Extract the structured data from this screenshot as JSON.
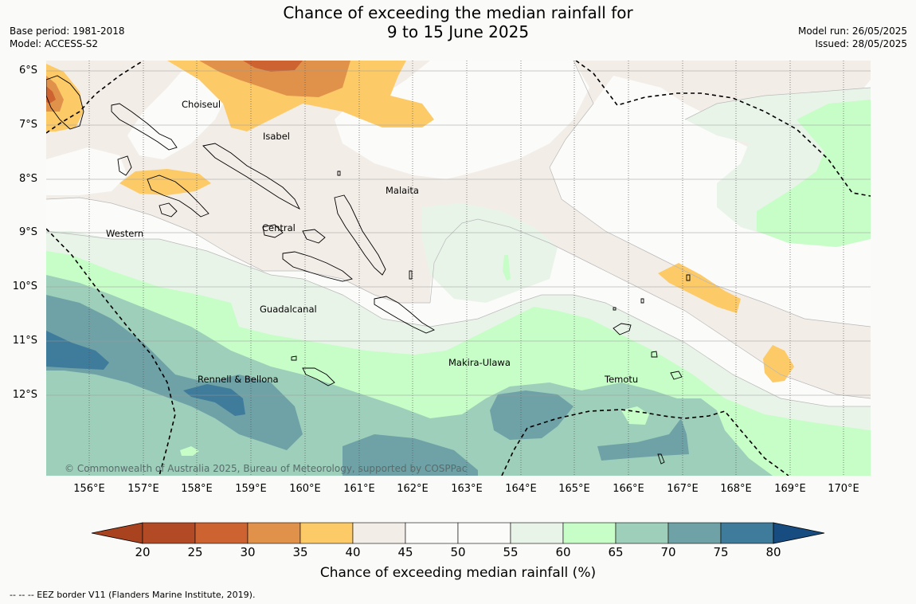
{
  "title": {
    "line1": "Chance of exceeding the median rainfall for",
    "line2": "9 to 15 June 2025"
  },
  "meta_left": {
    "base_period": "Base period: 1981-2018",
    "model": "Model: ACCESS-S2"
  },
  "meta_right": {
    "model_run": "Model run: 26/05/2025",
    "issued": "Issued: 28/05/2025"
  },
  "map": {
    "latitude_labels": [
      "6°S",
      "7°S",
      "8°S",
      "9°S",
      "10°S",
      "11°S",
      "12°S"
    ],
    "longitude_labels": [
      "156°E",
      "157°E",
      "158°E",
      "159°E",
      "160°E",
      "161°E",
      "162°E",
      "163°E",
      "164°E",
      "165°E",
      "166°E",
      "167°E",
      "168°E",
      "169°E",
      "170°E"
    ],
    "place_labels": {
      "choiseul": "Choiseul",
      "isabel": "Isabel",
      "malaita": "Malaita",
      "western": "Western",
      "central": "Central",
      "guadalcanal": "Guadalcanal",
      "makira_ulawa": "Makira-Ulawa",
      "temotu": "Temotu",
      "rennell_bellona": "Rennell & Bellona"
    },
    "copyright": "© Commonwealth of Australia 2025, Bureau of Meteorology, supported by COSPPac"
  },
  "colorbar": {
    "ticks": [
      "20",
      "25",
      "30",
      "35",
      "40",
      "45",
      "50",
      "55",
      "60",
      "65",
      "70",
      "75",
      "80"
    ],
    "colors": [
      "#a8421f",
      "#b24a26",
      "#cc6330",
      "#e0924a",
      "#fdca68",
      "#f3ede7",
      "#fbfbf9",
      "#fbfbf9",
      "#e9f4e9",
      "#c7fdc7",
      "#9ecfbb",
      "#6fa2a6",
      "#3f7b9b",
      "#164c80"
    ],
    "title": "Chance of exceeding median rainfall (%)"
  },
  "footnote": "--  --  -- EEZ border V11 (Flanders Marine Institute, 2019)."
}
